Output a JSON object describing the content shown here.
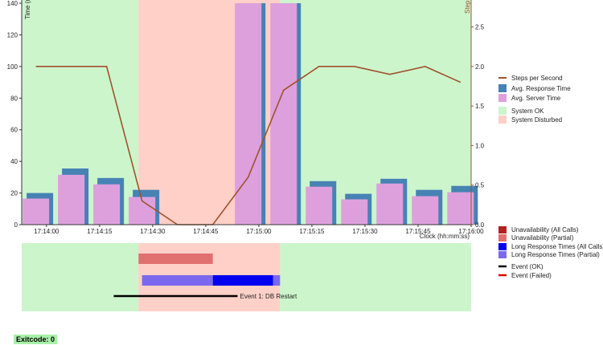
{
  "chart_data": {
    "type": "bar",
    "x_times": [
      "17:13:57",
      "17:14:07",
      "17:14:17",
      "17:14:27",
      "17:14:37",
      "17:14:47",
      "17:14:57",
      "17:15:07",
      "17:15:17",
      "17:15:27",
      "17:15:37",
      "17:15:47",
      "17:15:57"
    ],
    "series": [
      {
        "name": "Avg. Response Time",
        "values": [
          20,
          35.5,
          29.5,
          22,
          null,
          null,
          140,
          140,
          27.5,
          19.5,
          29,
          22,
          24.5
        ],
        "color": "#4682b4"
      },
      {
        "name": "Avg. Server Time",
        "values": [
          16.5,
          31.5,
          25.5,
          17.5,
          null,
          null,
          140,
          140,
          24,
          16,
          26,
          18,
          20.5
        ],
        "color": "#dda0dd"
      },
      {
        "name": "Steps per Second",
        "axis": "right",
        "values": [
          2.0,
          2.0,
          2.0,
          0.3,
          0.0,
          0.0,
          0.6,
          1.7,
          2.0,
          2.0,
          1.9,
          2.0,
          1.8
        ],
        "color": "#a0522d"
      }
    ],
    "ylabel_left": "Time (m",
    "ylabel_right": "Step",
    "xlabel": "Clock (hh:mm:ss)",
    "ylim_left": [
      0,
      140
    ],
    "ylim_right": [
      0,
      2.8
    ],
    "x_range": [
      "17:13:53",
      "17:16:00"
    ],
    "x_ticks": [
      "17:14:00",
      "17:14:15",
      "17:14:30",
      "17:14:45",
      "17:15:00",
      "17:15:15",
      "17:15:30",
      "17:15:45",
      "17:16:00"
    ],
    "y_ticks_left": [
      "0",
      "20",
      "40",
      "60",
      "80",
      "100",
      "120",
      "140"
    ],
    "y_ticks_right": [
      "0.0",
      "0.5",
      "1.0",
      "1.5",
      "2.0",
      "2.5"
    ],
    "regions": [
      {
        "name": "System OK",
        "start": "17:13:53",
        "end": "17:14:26",
        "color": "#ccf5cc"
      },
      {
        "name": "System Disturbed",
        "start": "17:14:26",
        "end": "17:15:06",
        "color": "#ffd0c8"
      },
      {
        "name": "System OK",
        "start": "17:15:06",
        "end": "17:16:00",
        "color": "#ccf5cc"
      }
    ],
    "lower_panel": {
      "bars": [
        {
          "name": "Unavailability (Partial)",
          "start": "17:14:26",
          "end": "17:14:47",
          "color": "#e07070",
          "row": 0
        },
        {
          "name": "Long Response Times (Partial)",
          "start": "17:14:27",
          "end": "17:14:47",
          "color": "#7b68ee",
          "row": 1
        },
        {
          "name": "Long Response Times (All Calls)",
          "start": "17:14:47",
          "end": "17:15:04",
          "color": "#0000ee",
          "row": 1
        },
        {
          "name": "Long Response Times (Partial)",
          "start": "17:15:04",
          "end": "17:15:06",
          "color": "#7b68ee",
          "row": 1
        }
      ],
      "events": [
        {
          "label": "Event 1: DB Restart",
          "start": "17:14:19",
          "end": "17:14:54",
          "status": "OK",
          "color": "#000000"
        }
      ]
    },
    "legend_top": [
      {
        "label": "Steps per Second",
        "type": "line",
        "color": "#a0522d"
      },
      {
        "label": "Avg. Response Time",
        "type": "box",
        "color": "#4682b4"
      },
      {
        "label": "Avg. Server Time",
        "type": "box",
        "color": "#dda0dd"
      },
      {
        "label": "System OK",
        "type": "box",
        "color": "#ccf5cc"
      },
      {
        "label": "System Disturbed",
        "type": "box",
        "color": "#ffd0c8"
      }
    ],
    "legend_bottom": [
      {
        "label": "Unavailability (All Calls)",
        "type": "box",
        "color": "#b22222"
      },
      {
        "label": "Unavailability (Partial)",
        "type": "box",
        "color": "#e07070"
      },
      {
        "label": "Long Response Times (All Calls)",
        "type": "box",
        "color": "#0000ee"
      },
      {
        "label": "Long Response Times (Partial)",
        "type": "box",
        "color": "#7b68ee"
      },
      {
        "label": "Event (OK)",
        "type": "line",
        "color": "#000000"
      },
      {
        "label": "Event (Failed)",
        "type": "line",
        "color": "#dd0000"
      }
    ]
  },
  "footer": {
    "exitcode": "Exitcode: 0"
  }
}
